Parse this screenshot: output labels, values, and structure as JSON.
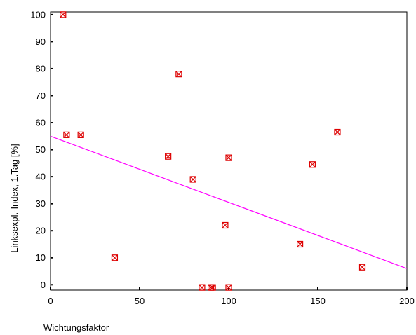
{
  "chart_data": {
    "type": "scatter",
    "xlabel": "Wichtungsfaktor",
    "ylabel": "Linksexpl.-Index, 1.Tag [%]",
    "xlim": [
      0,
      200
    ],
    "ylim": [
      -2,
      101
    ],
    "x_ticks": [
      0,
      50,
      100,
      150,
      200
    ],
    "y_ticks": [
      0,
      10,
      20,
      30,
      40,
      50,
      60,
      70,
      80,
      90,
      100
    ],
    "grid": false,
    "series": [
      {
        "marker": "boxed-x",
        "color": "#dd0000",
        "points": [
          {
            "x": 7,
            "y": 100
          },
          {
            "x": 9,
            "y": 55.5
          },
          {
            "x": 17,
            "y": 55.5
          },
          {
            "x": 36,
            "y": 10
          },
          {
            "x": 66,
            "y": 47.5
          },
          {
            "x": 72,
            "y": 78
          },
          {
            "x": 80,
            "y": 39
          },
          {
            "x": 85,
            "y": -1
          },
          {
            "x": 90,
            "y": -1
          },
          {
            "x": 91,
            "y": -1
          },
          {
            "x": 98,
            "y": 22
          },
          {
            "x": 100,
            "y": 47
          },
          {
            "x": 100,
            "y": -1
          },
          {
            "x": 140,
            "y": 15
          },
          {
            "x": 147,
            "y": 44.5
          },
          {
            "x": 161,
            "y": 56.5
          },
          {
            "x": 175,
            "y": 6.5
          }
        ]
      }
    ],
    "trendline": {
      "type": "linear",
      "color": "#ff00ff",
      "x": [
        0,
        200
      ],
      "y": [
        55,
        6
      ]
    }
  }
}
